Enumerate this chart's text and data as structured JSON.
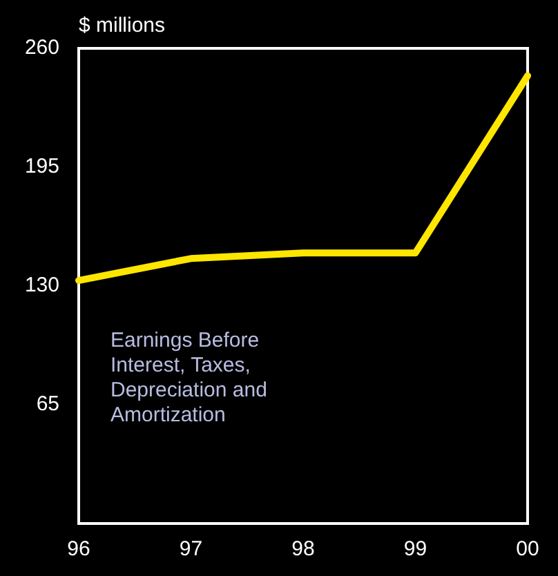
{
  "chart_data": {
    "type": "line",
    "ylabel": "$ millions",
    "categories": [
      "96",
      "97",
      "98",
      "99",
      "00"
    ],
    "series": [
      {
        "color": "#ffe600",
        "values": [
          133,
          145,
          148,
          148,
          245
        ]
      }
    ],
    "ylim": [
      0,
      260
    ],
    "yticks": [
      65,
      130,
      195,
      260
    ],
    "grid": false,
    "legend": false,
    "marker": "none",
    "line_style": "solid",
    "tick_labels": "xy",
    "annotations": [
      "Earnings Before Interest, Taxes, Depreciation and Amortization"
    ]
  }
}
